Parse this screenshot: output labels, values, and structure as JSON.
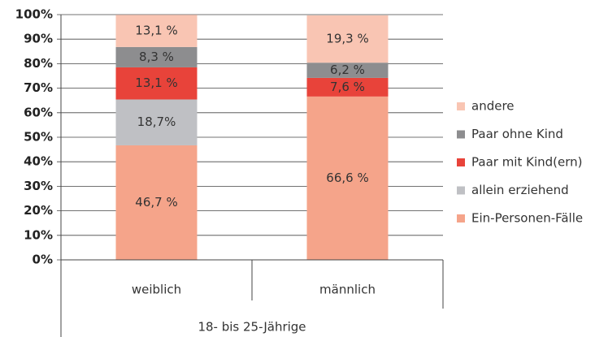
{
  "chart_data": {
    "type": "stacked_bar",
    "categories": [
      "weiblich",
      "männlich"
    ],
    "group_label": "18- bis 25-Jährige",
    "series": [
      {
        "name": "Ein-Personen-Fälle",
        "color": "#f5a48a",
        "values": [
          46.7,
          66.6
        ],
        "value_labels": [
          "46,7 %",
          "66,6 %"
        ]
      },
      {
        "name": "allein erziehend",
        "color": "#bfc0c4",
        "values": [
          18.7,
          null
        ],
        "value_labels": [
          "18,7%",
          null
        ]
      },
      {
        "name": "Paar mit Kind(ern)",
        "color": "#e8433a",
        "values": [
          13.1,
          7.6
        ],
        "value_labels": [
          "13,1 %",
          "7,6 %"
        ]
      },
      {
        "name": "Paar ohne Kind",
        "color": "#8d8d8f",
        "values": [
          8.3,
          6.2
        ],
        "value_labels": [
          "8,3 %",
          "6,2 %"
        ]
      },
      {
        "name": "andere",
        "color": "#f9c5b3",
        "values": [
          13.1,
          19.3
        ],
        "value_labels": [
          "13,1 %",
          "19,3 %"
        ]
      }
    ],
    "ylim": [
      0,
      100
    ],
    "yticks": [
      {
        "value": 0,
        "label": "0%"
      },
      {
        "value": 10,
        "label": "10%"
      },
      {
        "value": 20,
        "label": "20%"
      },
      {
        "value": 30,
        "label": "30%"
      },
      {
        "value": 40,
        "label": "40%"
      },
      {
        "value": 50,
        "label": "50%"
      },
      {
        "value": 60,
        "label": "60%"
      },
      {
        "value": 70,
        "label": "70%"
      },
      {
        "value": 80,
        "label": "80%"
      },
      {
        "value": 90,
        "label": "90%"
      },
      {
        "value": 100,
        "label": "100%"
      }
    ],
    "grid": true,
    "legend": "right"
  }
}
